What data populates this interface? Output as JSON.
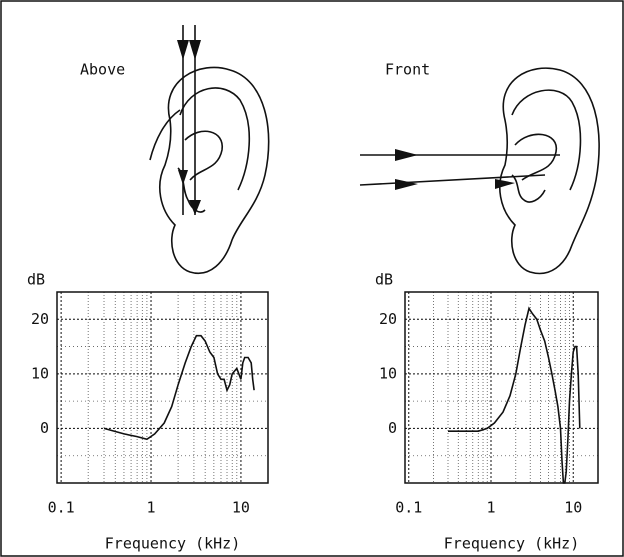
{
  "chart_data": [
    {
      "type": "line",
      "title": "Above",
      "y_label": "dB",
      "x_label": "Frequency (kHz)",
      "x": [
        0.3,
        0.5,
        0.7,
        0.9,
        1.1,
        1.4,
        1.7,
        2.0,
        2.4,
        2.8,
        3.2,
        3.6,
        4.0,
        4.5,
        5.0,
        5.5,
        6.0,
        6.5,
        7.0,
        7.5,
        8.0,
        9.0,
        10.0,
        10.5,
        11.0,
        12.0,
        13.0,
        13.5,
        14.0
      ],
      "values": [
        0,
        -1,
        -1.5,
        -2,
        -1,
        1,
        4,
        8,
        12,
        15,
        17,
        17,
        16,
        14,
        13,
        10,
        9,
        9,
        7,
        8,
        10,
        11,
        9,
        12,
        13,
        13,
        12,
        9,
        7
      ],
      "color": "#111111",
      "xlim": [
        0.09,
        20
      ],
      "xticks": [
        0.1,
        1,
        10
      ],
      "log_x": true,
      "ylim": [
        -10,
        25
      ],
      "yticks": [
        0,
        10,
        20
      ],
      "grid": true
    },
    {
      "type": "line",
      "title": "Front",
      "y_label": "dB",
      "x_label": "Frequency (kHz)",
      "x": [
        0.3,
        0.5,
        0.7,
        0.9,
        1.1,
        1.4,
        1.7,
        2.0,
        2.3,
        2.6,
        2.9,
        3.2,
        3.6,
        4.0,
        4.5,
        5.0,
        5.5,
        6.0,
        6.5,
        7.0,
        7.3,
        7.6,
        7.9,
        8.2,
        8.6,
        9.0,
        9.5,
        10.0,
        10.5,
        11.0,
        11.5,
        12.0
      ],
      "values": [
        -0.5,
        -0.5,
        -0.5,
        0,
        1,
        3,
        6,
        10,
        15,
        19,
        22,
        21,
        20,
        18,
        16,
        13,
        10,
        7,
        4,
        0,
        -6,
        -10,
        -10,
        -8,
        -2,
        5,
        10,
        14,
        15,
        15,
        10,
        0
      ],
      "color": "#111111",
      "xlim": [
        0.09,
        20
      ],
      "xticks": [
        0.1,
        1,
        10
      ],
      "log_x": true,
      "ylim": [
        -10,
        25
      ],
      "yticks": [
        0,
        10,
        20
      ],
      "grid": true
    }
  ]
}
